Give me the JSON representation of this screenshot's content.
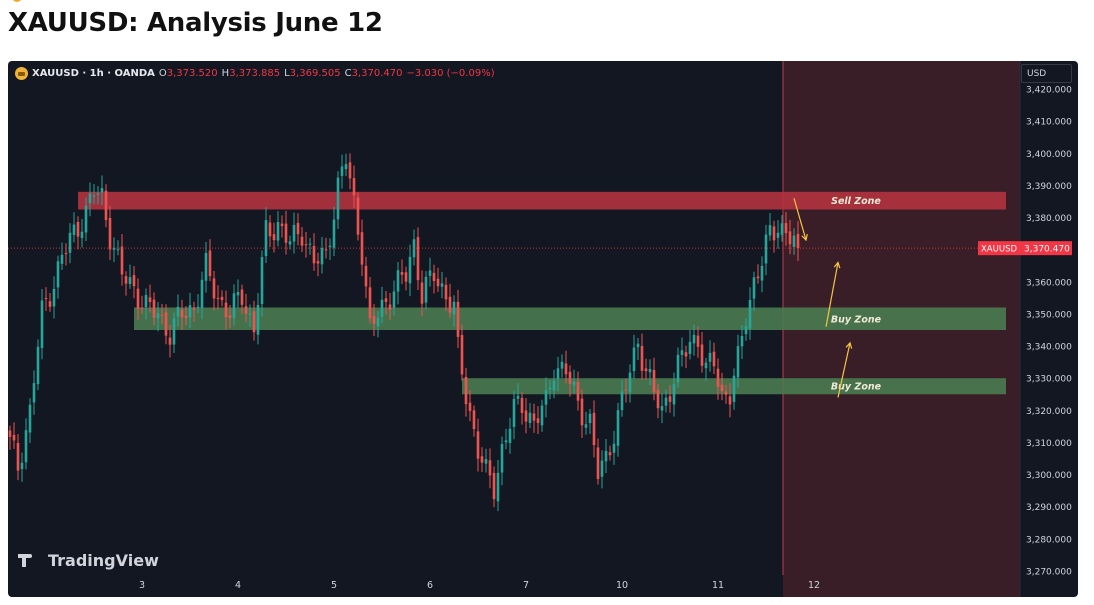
{
  "page": {
    "title": "XAUUSD: Analysis June 12"
  },
  "legend": {
    "symbol": "XAUUSD · 1h · OANDA",
    "o_label": "O",
    "o_value": "3,373.520",
    "h_label": "H",
    "h_value": "3,373.885",
    "l_label": "L",
    "l_value": "3,369.505",
    "c_label": "C",
    "c_value": "3,370.470",
    "change": "−3.030 (−0.09%)"
  },
  "currency": "USD",
  "brand": "TradingView",
  "colors": {
    "background": "#131722",
    "up": "#26a69a",
    "down": "#ef5350",
    "sell_zone": "#b2323f",
    "buy_zone": "#4a7b50",
    "future_region": "#3a1e27",
    "arrow": "#f5c542",
    "price_label": "#f23645"
  },
  "chart_data": {
    "type": "candlestick",
    "title": "XAUUSD: Analysis June 12",
    "timeframe": "1h",
    "source": "OANDA",
    "ylim": [
      3270,
      3425
    ],
    "y_ticks": [
      3420,
      3410,
      3400,
      3390,
      3380,
      3370,
      3360,
      3350,
      3340,
      3330,
      3320,
      3310,
      3300,
      3290,
      3280,
      3270
    ],
    "y_tick_labels": [
      "3,420.000",
      "3,410.000",
      "3,400.000",
      "3,390.000",
      "3,380.000",
      "3,370.000",
      "3,360.000",
      "3,350.000",
      "3,340.000",
      "3,330.000",
      "3,320.000",
      "3,310.000",
      "3,300.000",
      "3,290.000",
      "3,280.000",
      "3,270.000"
    ],
    "x_tick_labels": [
      {
        "label": "3",
        "bar": 20
      },
      {
        "label": "4",
        "bar": 44
      },
      {
        "label": "5",
        "bar": 68
      },
      {
        "label": "6",
        "bar": 92
      },
      {
        "label": "7",
        "bar": 116
      },
      {
        "label": "10",
        "bar": 140
      },
      {
        "label": "11",
        "bar": 164
      },
      {
        "label": "12",
        "bar": 188
      }
    ],
    "x_range": [
      0,
      250
    ],
    "last_bar": 197,
    "future_start": 193,
    "current_price": {
      "value": 3370.47,
      "label": "3,370.470",
      "tag": "XAUUSD"
    },
    "anchors": [
      [
        0,
        3310
      ],
      [
        2,
        3302
      ],
      [
        5,
        3320
      ],
      [
        8,
        3350
      ],
      [
        11,
        3360
      ],
      [
        13,
        3368
      ],
      [
        16,
        3375
      ],
      [
        19,
        3382
      ],
      [
        21,
        3388
      ],
      [
        23,
        3386
      ],
      [
        25,
        3375
      ],
      [
        28,
        3362
      ],
      [
        31,
        3358
      ],
      [
        34,
        3352
      ],
      [
        37,
        3350
      ],
      [
        40,
        3344
      ],
      [
        43,
        3350
      ],
      [
        46,
        3352
      ],
      [
        49,
        3364
      ],
      [
        52,
        3355
      ],
      [
        55,
        3350
      ],
      [
        58,
        3356
      ],
      [
        61,
        3345
      ],
      [
        64,
        3375
      ],
      [
        67,
        3378
      ],
      [
        70,
        3372
      ],
      [
        73,
        3376
      ],
      [
        76,
        3366
      ],
      [
        79,
        3368
      ],
      [
        82,
        3390
      ],
      [
        84,
        3398
      ],
      [
        86,
        3384
      ],
      [
        88,
        3370
      ],
      [
        90,
        3345
      ],
      [
        93,
        3352
      ],
      [
        96,
        3358
      ],
      [
        99,
        3362
      ],
      [
        101,
        3372
      ],
      [
        103,
        3356
      ],
      [
        106,
        3362
      ],
      [
        109,
        3356
      ],
      [
        111,
        3352
      ],
      [
        112,
        3338
      ],
      [
        114,
        3325
      ],
      [
        117,
        3308
      ],
      [
        119,
        3300
      ],
      [
        121,
        3296
      ],
      [
        123,
        3308
      ],
      [
        126,
        3320
      ],
      [
        128,
        3322
      ],
      [
        131,
        3316
      ],
      [
        134,
        3322
      ],
      [
        136,
        3334
      ],
      [
        139,
        3332
      ],
      [
        142,
        3322
      ],
      [
        145,
        3316
      ],
      [
        147,
        3300
      ],
      [
        149,
        3305
      ],
      [
        152,
        3318
      ],
      [
        155,
        3332
      ],
      [
        157,
        3342
      ],
      [
        159,
        3332
      ],
      [
        161,
        3325
      ],
      [
        163,
        3320
      ],
      [
        166,
        3330
      ],
      [
        168,
        3336
      ],
      [
        170,
        3342
      ],
      [
        172,
        3342
      ],
      [
        174,
        3332
      ],
      [
        176,
        3335
      ],
      [
        178,
        3325
      ],
      [
        180,
        3325
      ],
      [
        182,
        3335
      ],
      [
        184,
        3350
      ],
      [
        186,
        3360
      ],
      [
        188,
        3366
      ],
      [
        190,
        3375
      ],
      [
        192,
        3378
      ],
      [
        195,
        3373.5
      ],
      [
        197,
        3370.47
      ]
    ],
    "zones": [
      {
        "name": "Sell Zone",
        "from": 3382.5,
        "to": 3388,
        "x_start": 17,
        "x_end": 249,
        "type": "sell"
      },
      {
        "name": "Buy Zone",
        "from": 3345,
        "to": 3352,
        "x_start": 31,
        "x_end": 249,
        "type": "buy"
      },
      {
        "name": "Buy Zone",
        "from": 3325,
        "to": 3330,
        "x_start": 113,
        "x_end": 249,
        "type": "buy"
      }
    ],
    "projections": [
      {
        "points": [
          [
            196,
            3386
          ],
          [
            199,
            3373
          ]
        ]
      },
      {
        "points": [
          [
            204,
            3346
          ],
          [
            207,
            3366
          ]
        ]
      },
      {
        "points": [
          [
            207,
            3324
          ],
          [
            210,
            3341
          ]
        ]
      }
    ]
  }
}
